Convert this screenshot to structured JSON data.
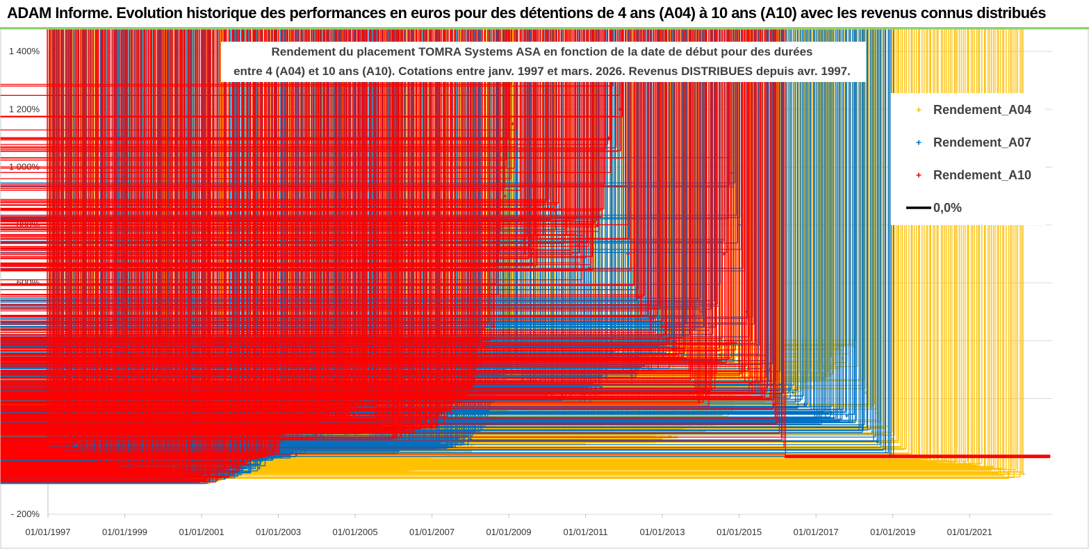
{
  "banner": {
    "title": "ADAM Informe. Evolution historique des performances en euros pour des détentions de 4 ans (A04) à 10 ans (A10) avec les revenus connus distribués"
  },
  "colors": {
    "A04": "#ffc000",
    "A07": "#0070c0",
    "A10": "#ff0000",
    "zero": "#000000",
    "banner_border": "#8fd16a",
    "grid": "#d9d9d9"
  },
  "chart_data": {
    "type": "scatter",
    "title_lines": [
      "Rendement du placement TOMRA Systems ASA en fonction de la date de début pour des durées",
      "entre 4 (A04) et 10 ans (A10). Cotations entre janv. 1997 et mars. 2026. Revenus DISTRIBUES depuis avr. 1997."
    ],
    "xlabel": "",
    "ylabel": "",
    "ylim": [
      -200,
      1400
    ],
    "xlim": [
      1997.0,
      2023.15
    ],
    "y_ticks": [
      -200,
      0,
      200,
      400,
      600,
      800,
      1000,
      1200,
      1400
    ],
    "y_tick_labels": [
      "- 200%",
      "0%",
      "200%",
      "400%",
      "600%",
      "800%",
      "1 000%",
      "1 200%",
      "1 400%"
    ],
    "x_ticks": [
      1997,
      1999,
      2001,
      2003,
      2005,
      2007,
      2009,
      2011,
      2013,
      2015,
      2017,
      2019,
      2021
    ],
    "x_tick_labels": [
      "01/01/1997",
      "01/01/1999",
      "01/01/2001",
      "01/01/2003",
      "01/01/2005",
      "01/01/2007",
      "01/01/2009",
      "01/01/2011",
      "01/01/2013",
      "01/01/2015",
      "01/01/2017",
      "01/01/2019",
      "01/01/2021"
    ],
    "grid": "horizontal",
    "legend_position": "top-right",
    "series": [
      {
        "name": "Rendement_A04",
        "marker": "+",
        "x": [
          1997.0,
          1997.3,
          1997.6,
          1997.9,
          1998.2,
          1998.5,
          1998.8,
          1999.1,
          1999.5,
          2000.0,
          2000.5,
          2001.0,
          2001.5,
          2002.0,
          2002.5,
          2003.0,
          2003.3,
          2003.7,
          2004.0,
          2004.3,
          2004.7,
          2005.0,
          2005.5,
          2006.0,
          2006.5,
          2007.0,
          2007.5,
          2008.0,
          2008.5,
          2008.9,
          2009.2,
          2009.6,
          2010.0,
          2010.5,
          2011.0,
          2011.3,
          2011.7,
          2012.0,
          2012.4,
          2012.8,
          2013.2,
          2013.6,
          2014.0,
          2014.4,
          2014.8,
          2015.0,
          2015.3,
          2015.6,
          2016.0,
          2016.3,
          2016.6,
          2017.0,
          2017.3,
          2017.7,
          2018.0,
          2018.3,
          2018.6,
          2019.0,
          2019.5,
          2020.0,
          2020.5,
          2021.0,
          2021.5,
          2022.0,
          2022.4
        ],
        "values": [
          440,
          350,
          300,
          150,
          100,
          60,
          30,
          10,
          -60,
          -55,
          -60,
          -80,
          -75,
          -40,
          -10,
          30,
          50,
          40,
          60,
          50,
          20,
          -30,
          -40,
          -45,
          -40,
          0,
          10,
          20,
          80,
          160,
          180,
          140,
          110,
          80,
          50,
          80,
          100,
          60,
          80,
          60,
          70,
          90,
          100,
          130,
          160,
          250,
          280,
          230,
          200,
          230,
          260,
          270,
          300,
          340,
          380,
          220,
          150,
          60,
          0,
          -20,
          -20,
          -30,
          -40,
          -60,
          -60
        ]
      },
      {
        "name": "Rendement_A07",
        "marker": "+",
        "x": [
          1997.0,
          1997.4,
          1997.8,
          1998.3,
          1998.8,
          1999.2,
          1999.6,
          2000.0,
          2000.5,
          2001.0,
          2001.5,
          2002.0,
          2002.5,
          2003.0,
          2003.3,
          2003.7,
          2004.0,
          2004.4,
          2004.8,
          2005.2,
          2005.6,
          2006.0,
          2006.5,
          2007.0,
          2007.5,
          2008.0,
          2008.4,
          2008.8,
          2009.2,
          2009.6,
          2010.0,
          2010.5,
          2011.0,
          2011.4,
          2011.8,
          2012.2,
          2012.6,
          2013.0,
          2013.3,
          2013.6,
          2014.0,
          2014.3,
          2014.6,
          2014.8,
          2015.0,
          2015.2,
          2015.5,
          2015.8,
          2016.1,
          2016.4,
          2016.7,
          2017.0,
          2017.4,
          2017.8,
          2018.2,
          2018.6,
          2019.0
        ],
        "values": [
          20,
          -20,
          -30,
          -40,
          10,
          -30,
          -60,
          -60,
          -65,
          -80,
          -65,
          -55,
          -40,
          10,
          0,
          20,
          40,
          90,
          80,
          100,
          40,
          20,
          40,
          30,
          40,
          60,
          120,
          260,
          320,
          250,
          230,
          230,
          200,
          240,
          380,
          280,
          350,
          330,
          370,
          460,
          500,
          450,
          700,
          980,
          800,
          500,
          350,
          300,
          250,
          220,
          180,
          130,
          150,
          140,
          100,
          50,
          0
        ]
      },
      {
        "name": "Rendement_A10",
        "marker": "+",
        "x": [
          1997.0,
          1997.4,
          1997.8,
          1998.2,
          1998.6,
          1999.0,
          1999.5,
          2000.0,
          2000.5,
          2001.0,
          2001.5,
          2002.0,
          2002.5,
          2003.0,
          2003.2,
          2003.6,
          2004.0,
          2004.3,
          2004.7,
          2005.0,
          2005.3,
          2005.6,
          2006.0,
          2006.5,
          2007.0,
          2007.5,
          2008.0,
          2008.3,
          2008.6,
          2008.9,
          2009.1,
          2009.4,
          2009.6,
          2009.9,
          2010.2,
          2010.5,
          2010.8,
          2011.1,
          2011.3,
          2011.6,
          2011.9,
          2012.1,
          2012.4,
          2012.7,
          2013.0,
          2013.3,
          2013.6,
          2013.9,
          2014.2,
          2014.5,
          2014.8,
          2015.0,
          2015.3,
          2015.6,
          2015.9,
          2016.2
        ],
        "values": [
          50,
          30,
          40,
          0,
          -20,
          -40,
          -60,
          -55,
          -60,
          -80,
          -70,
          -40,
          0,
          20,
          100,
          80,
          80,
          150,
          100,
          170,
          200,
          120,
          70,
          100,
          110,
          150,
          240,
          380,
          450,
          900,
          1150,
          750,
          700,
          800,
          850,
          800,
          730,
          650,
          800,
          1100,
          1200,
          700,
          550,
          480,
          450,
          350,
          330,
          200,
          200,
          350,
          400,
          330,
          250,
          230,
          180,
          0
        ]
      },
      {
        "name": "Rendement_A10 (null)",
        "marker": "+",
        "x": [
          2016.2,
          2023.1
        ],
        "values": [
          0,
          0
        ]
      }
    ],
    "reference_lines": [
      {
        "name": "0,0%",
        "x": [
          1997.0,
          2016.2
        ],
        "y": [
          0,
          0
        ]
      }
    ],
    "legend": [
      "Rendement_A04",
      "Rendement_A07",
      "Rendement_A10",
      "0,0%"
    ]
  }
}
